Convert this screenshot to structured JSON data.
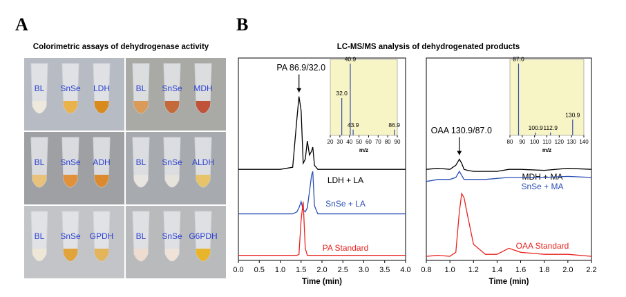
{
  "panel_a": {
    "letter": "A",
    "title": "Colorimetric assays of dehydrogenase activity",
    "photos": [
      {
        "labels": [
          "BL",
          "SnSe",
          "LDH"
        ]
      },
      {
        "labels": [
          "BL",
          "SnSe",
          "MDH"
        ]
      },
      {
        "labels": [
          "BL",
          "SnSe",
          "ADH"
        ]
      },
      {
        "labels": [
          "BL",
          "SnSe",
          "ALDH"
        ]
      },
      {
        "labels": [
          "BL",
          "SnSe",
          "GPDH"
        ]
      },
      {
        "labels": [
          "BL",
          "SnSe",
          "G6PDH"
        ]
      }
    ]
  },
  "panel_b": {
    "letter": "B",
    "title": "LC-MS/MS analysis of dehydrogenated products"
  },
  "chart_data": [
    {
      "type": "line",
      "x_label": "Time (min)",
      "xlim": [
        0,
        4
      ],
      "xticks": [
        {
          "value": 0,
          "label": "0.0"
        },
        0.5,
        {
          "value": 1,
          "label": "1.0"
        },
        1.5,
        {
          "value": 2,
          "label": "2.0"
        },
        2.5,
        {
          "value": 3,
          "label": "3.0"
        },
        3.5,
        {
          "value": 4,
          "label": "4.0"
        }
      ],
      "ylim": [
        0,
        100
      ],
      "x": [
        0,
        0.5,
        1.0,
        1.3,
        1.4,
        1.45,
        1.5,
        1.55,
        1.6,
        1.65,
        1.7,
        1.75,
        1.78,
        1.82,
        1.9,
        2.0,
        2.5,
        3.0,
        3.5,
        4.0
      ],
      "series": [
        {
          "name": "LDH + LA",
          "color": "#000000",
          "values": [
            45,
            45,
            45,
            46,
            70,
            81,
            74,
            48,
            50,
            59,
            52,
            54,
            56,
            47,
            45,
            45,
            45,
            45,
            45,
            45
          ]
        },
        {
          "name": "SnSe + LA",
          "color": "#2a4fb5",
          "values": [
            23,
            23,
            23,
            23,
            24,
            26,
            29,
            25,
            24,
            26,
            34,
            42,
            44,
            27,
            23,
            23,
            23,
            23,
            23,
            23
          ]
        },
        {
          "name": "PA Standard",
          "color": "#e8231f",
          "values": [
            2.5,
            2.5,
            2.5,
            2.5,
            2.5,
            3,
            20,
            29,
            6,
            2.5,
            2.5,
            2.5,
            2.5,
            2.5,
            2.5,
            2.5,
            2.5,
            2.5,
            2.5,
            2.5
          ]
        }
      ],
      "annotation": {
        "text": "PA 86.9/32.0",
        "x": 1.45
      },
      "inset": {
        "type": "bar",
        "x_label": "m/z",
        "xlim": [
          20,
          90
        ],
        "xticks": [
          20,
          30,
          40,
          50,
          60,
          70,
          80,
          90
        ],
        "ylim": [
          0,
          100
        ],
        "x": [
          32.0,
          40.9,
          43.9,
          86.9
        ],
        "x_labels": [
          "32.0",
          "40.9",
          "43.9",
          "86.9"
        ],
        "values": [
          52,
          100,
          8,
          8
        ]
      }
    },
    {
      "type": "line",
      "x_label": "Time (min)",
      "xlim": [
        0.8,
        2.2
      ],
      "xticks": [
        0.8,
        {
          "value": 1,
          "label": "1.0"
        },
        1.2,
        1.4,
        1.6,
        1.8,
        {
          "value": 2,
          "label": "2.0"
        },
        2.2
      ],
      "ylim": [
        0,
        100
      ],
      "x": [
        0.8,
        0.9,
        1.0,
        1.05,
        1.08,
        1.1,
        1.12,
        1.15,
        1.2,
        1.3,
        1.4,
        1.5,
        1.6,
        1.8,
        2.0,
        2.2
      ],
      "series": [
        {
          "name": "MDH + MA",
          "color": "#000000",
          "values": [
            45,
            45.5,
            45,
            47,
            50,
            48,
            45,
            44.5,
            44,
            44,
            44,
            45,
            45,
            44.5,
            45.5,
            45
          ]
        },
        {
          "name": "SnSe + MA",
          "color": "#2a4fb5",
          "values": [
            39,
            40,
            40,
            41,
            44,
            42,
            40,
            40,
            40,
            40,
            40.5,
            41,
            41,
            41,
            41.5,
            41
          ]
        },
        {
          "name": "OAA Standard",
          "color": "#e8231f",
          "values": [
            2,
            2.5,
            2,
            4,
            24,
            33,
            31,
            22,
            8,
            3,
            3,
            6,
            4,
            3,
            3,
            2
          ]
        }
      ],
      "annotation": {
        "text": "OAA 130.9/87.0",
        "x": 1.08
      },
      "inset": {
        "type": "bar",
        "x_label": "m/z",
        "xlim": [
          80,
          140
        ],
        "xticks": [
          80,
          90,
          100,
          110,
          120,
          130,
          140
        ],
        "ylim": [
          0,
          100
        ],
        "x": [
          87.0,
          100.9,
          112.9,
          130.9
        ],
        "x_labels": [
          "87.0",
          "100.9",
          "112.9",
          "130.9"
        ],
        "values": [
          100,
          4,
          4,
          22
        ]
      }
    }
  ]
}
